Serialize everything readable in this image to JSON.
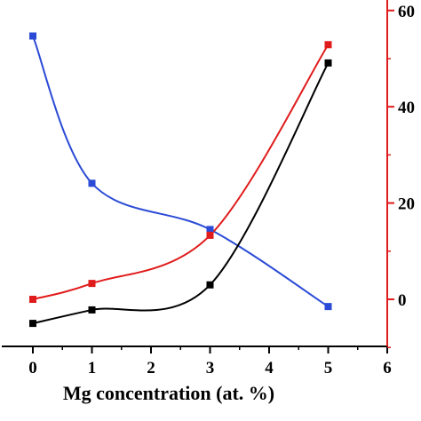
{
  "chart_data": {
    "type": "line",
    "title": "",
    "xlabel": "Mg concentration (at. %)",
    "xlim": [
      0,
      6
    ],
    "x_ticks": [
      "0",
      "1",
      "2",
      "3",
      "4",
      "5",
      "6"
    ],
    "y_right_ticks": [
      "0",
      "20",
      "40",
      "60"
    ],
    "y_right_ylim": [
      -10,
      60
    ],
    "grid": false,
    "legend": "none",
    "series": [
      {
        "color": "#2b4bd6",
        "x": [
          0,
          1,
          3,
          5
        ],
        "y": [
          54.7,
          24.1,
          14.5,
          -1.5
        ],
        "axis": "right"
      },
      {
        "color": "#e01b1b",
        "x": [
          0,
          1,
          3,
          5
        ],
        "y": [
          0,
          3.3,
          13.3,
          52.9
        ],
        "axis": "right"
      },
      {
        "color": "#000000",
        "x": [
          0,
          1,
          3,
          5
        ],
        "y": [
          -5,
          -2.2,
          3,
          49.1
        ],
        "axis": "right"
      }
    ],
    "right_axis_color": "#e01b1b"
  }
}
